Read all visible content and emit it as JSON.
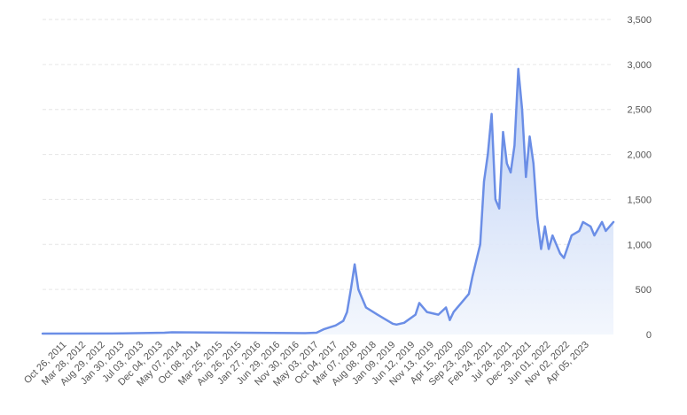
{
  "chart_data": {
    "type": "area",
    "title": "",
    "xlabel": "",
    "ylabel": "",
    "ylim": [
      0,
      3500
    ],
    "y_ticks": [
      0,
      500,
      1000,
      1500,
      2000,
      2500,
      3000,
      3500
    ],
    "y_tick_labels": [
      "0",
      "500",
      "1,000",
      "1,500",
      "2,000",
      "2,500",
      "3,000",
      "3,500"
    ],
    "y_axis_side": "right",
    "grid": true,
    "legend": "none",
    "x_tick_labels": [
      "Oct 26, 2011",
      "Mar 28, 2012",
      "Aug 29, 2012",
      "Jan 30, 2013",
      "Jul 03, 2013",
      "Dec 04, 2013",
      "May 07, 2014",
      "Oct 08, 2014",
      "Mar 25, 2015",
      "Aug 26, 2015",
      "Jan 27, 2016",
      "Jun 29, 2016",
      "Nov 30, 2016",
      "May 03, 2017",
      "Oct 04, 2017",
      "Mar 07, 2018",
      "Aug 08, 2018",
      "Jan 09, 2019",
      "Jun 12, 2019",
      "Nov 13, 2019",
      "Apr 15, 2020",
      "Sep 23, 2020",
      "Feb 24, 2021",
      "Jul 28, 2021",
      "Dec 29, 2021",
      "Jun 01, 2022",
      "Nov 02, 2022",
      "Apr 05, 2023"
    ],
    "series": [
      {
        "x": [
          "Apr 2011",
          "Jan 2013",
          "Dec 2013",
          "Feb 2014",
          "Jan 2017",
          "Apr 2017",
          "Jun 2017",
          "Sep 2017",
          "Nov 2017",
          "Dec 2017",
          "Jan 2018",
          "Feb 2018",
          "Mar 2018",
          "Apr 2018",
          "May 2018",
          "Aug 2018",
          "Dec 2018",
          "Jan 2019",
          "Mar 2019",
          "Jun 2019",
          "Jul 2019",
          "Sep 2019",
          "Dec 2019",
          "Feb 2020",
          "Mar 2020",
          "Apr 2020",
          "Jun 2020",
          "Aug 2020",
          "Sep 2020",
          "Nov 2020",
          "Dec 2020",
          "Jan 2021",
          "Feb 2021",
          "Mar 2021",
          "Apr 2021",
          "May 2021",
          "Jun 2021",
          "Jul 2021",
          "Aug 2021",
          "Sep 2021",
          "Oct 2021",
          "Nov 2021",
          "Dec 2021",
          "Jan 2022",
          "Feb 2022",
          "Mar 2022",
          "Apr 2022",
          "May 2022",
          "Jun 2022",
          "Aug 2022",
          "Sep 2022",
          "Nov 2022",
          "Jan 2023",
          "Feb 2023",
          "Apr 2023",
          "May 2023",
          "Jul 2023",
          "Aug 2023",
          "Oct 2023"
        ],
        "values": [
          10,
          12,
          20,
          25,
          15,
          20,
          60,
          100,
          150,
          250,
          500,
          780,
          500,
          400,
          300,
          220,
          120,
          110,
          130,
          220,
          350,
          250,
          220,
          300,
          160,
          250,
          350,
          450,
          650,
          1000,
          1700,
          2000,
          2450,
          1500,
          1400,
          2250,
          1900,
          1800,
          2100,
          2950,
          2500,
          1750,
          2200,
          1900,
          1300,
          950,
          1200,
          950,
          1100,
          900,
          850,
          1100,
          1150,
          1250,
          1200,
          1100,
          1250,
          1150,
          1250
        ]
      }
    ],
    "colors": {
      "line": "#6b8ee6",
      "fill_top": "#b9cdf4",
      "fill_bottom": "#f2f6fd",
      "grid": "#e6e6e6",
      "text": "#555555"
    }
  }
}
